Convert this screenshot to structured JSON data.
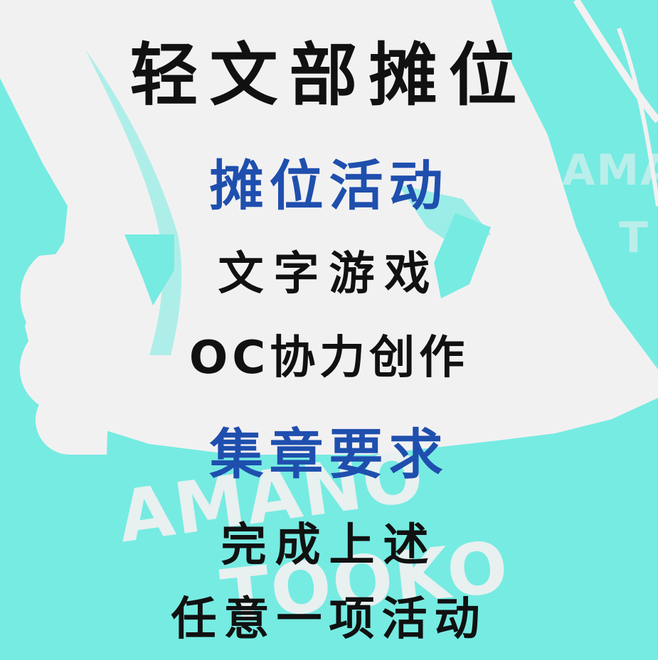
{
  "poster": {
    "title": "轻文部摊位",
    "section_activities": "摊位活动",
    "activity_1": "文字游戏",
    "activity_2": "OC协力创作",
    "section_stamp": "集章要求",
    "requirement_line_1": "完成上述",
    "requirement_line_2": "任意一项活动"
  },
  "background": {
    "word_1": "AMANO",
    "word_2": "TOOKO",
    "word_3": "AMA",
    "word_4": "T"
  },
  "colors": {
    "background": "#76ebe2",
    "shape": "#f2f1f2",
    "text": "#111111",
    "accent": "#1f4fae"
  }
}
